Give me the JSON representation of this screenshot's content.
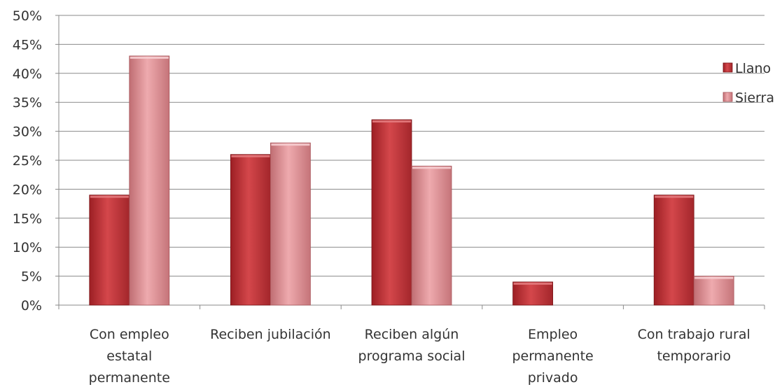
{
  "chart_data": {
    "type": "bar",
    "categories": [
      [
        "Con empleo",
        "estatal",
        "permanente"
      ],
      [
        "Reciben jubilación"
      ],
      [
        "Reciben algún",
        "programa social"
      ],
      [
        "Empleo",
        "permanente",
        "privado"
      ],
      [
        "Con trabajo rural",
        "temporario"
      ]
    ],
    "series": [
      {
        "name": "Llano",
        "values": [
          19,
          26,
          32,
          4,
          19
        ],
        "color": "#c0393b"
      },
      {
        "name": "Sierra",
        "values": [
          43,
          28,
          24,
          0,
          5
        ],
        "color": "#d9888c"
      }
    ],
    "ylim": [
      0,
      50
    ],
    "yticks": [
      0,
      5,
      10,
      15,
      20,
      25,
      30,
      35,
      40,
      45,
      50
    ],
    "ytick_labels": [
      "0%",
      "5%",
      "10%",
      "15%",
      "20%",
      "25%",
      "30%",
      "35%",
      "40%",
      "45%",
      "50%"
    ],
    "grid": true,
    "legend_position": "right"
  }
}
